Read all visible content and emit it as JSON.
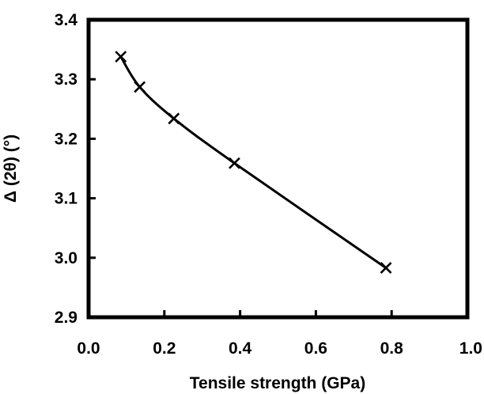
{
  "chart_data": {
    "type": "line",
    "title": "",
    "xlabel": "Tensile strength (GPa)",
    "ylabel": "Δ (2θ) (°)",
    "xlim": [
      0.0,
      1.0
    ],
    "ylim": [
      2.9,
      3.4
    ],
    "x_ticks": [
      "0.0",
      "0.2",
      "0.4",
      "0.6",
      "0.8",
      "1.0"
    ],
    "y_ticks": [
      "2.9",
      "3.0",
      "3.1",
      "3.2",
      "3.3",
      "3.4"
    ],
    "grid": false,
    "legend": "none",
    "marker": "x",
    "series": [
      {
        "x": [
          0.085,
          0.135,
          0.225,
          0.385,
          0.785
        ],
        "y": [
          3.338,
          3.287,
          3.234,
          3.159,
          2.983
        ]
      }
    ],
    "colors": {
      "line": "#000000",
      "marker": "#000000",
      "axes": "#000000"
    }
  }
}
